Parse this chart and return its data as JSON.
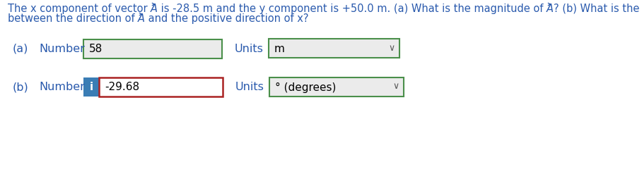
{
  "line1_before_A1": "The x component of vector ",
  "line1_A1": "A",
  "line1_after_A1": " is -28.5 m and the y component is +50.0 m. (a) What is the magnitude of ",
  "line1_A2": "A",
  "line1_after_A2": "? (b) What is the angle",
  "line2_before_A": "between the direction of ",
  "line2_A": "A",
  "line2_after_A": " and the positive direction of x?",
  "part_a_label_1": "(a)",
  "part_a_label_2": "Number",
  "part_a_value": "58",
  "part_a_units_label": "Units",
  "part_a_units_value": "m",
  "part_b_label_1": "(b)",
  "part_b_label_2": "Number",
  "part_b_value": "-29.68",
  "part_b_units_label": "Units",
  "part_b_units_value": "° (degrees)",
  "bg_color": "#ffffff",
  "text_color": "#2a5aad",
  "label_color": "#2a5aad",
  "black": "#000000",
  "box_border_green": "#4a8f4a",
  "box_border_red": "#aa2222",
  "box_fill_gray": "#ebebeb",
  "box_fill_white": "#ffffff",
  "info_btn_color": "#3a7db5",
  "dropdown_chevron": "∨",
  "font_size_q": 10.5,
  "font_size_label": 11.5,
  "font_size_value": 11
}
